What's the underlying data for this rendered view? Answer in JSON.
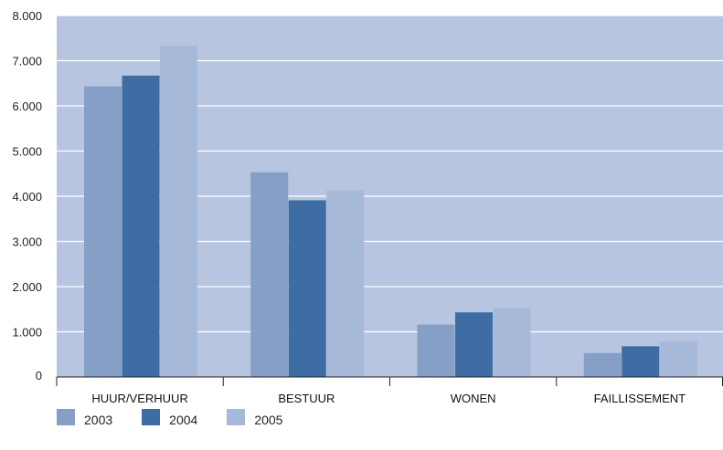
{
  "chart_data": {
    "type": "bar",
    "categories": [
      "HUUR/VERHUUR",
      "BESTUUR",
      "WONEN",
      "FAILLISSEMENT"
    ],
    "series": [
      {
        "name": "2003",
        "color": "#859fc6",
        "values": [
          6430,
          4530,
          1160,
          530
        ]
      },
      {
        "name": "2004",
        "color": "#3d6da3",
        "values": [
          6670,
          3910,
          1430,
          680
        ]
      },
      {
        "name": "2005",
        "color": "#a7b9d9",
        "values": [
          7330,
          4130,
          1530,
          790
        ]
      }
    ],
    "y_ticks": [
      "0",
      "1.000",
      "2.000",
      "3.000",
      "4.000",
      "5.000",
      "6.000",
      "7.000",
      "8.000"
    ],
    "ylim": [
      0,
      8000
    ],
    "grid": true,
    "plot_background": "#b8c5e0",
    "legend_position": "bottom-left",
    "title": "",
    "xlabel": "",
    "ylabel": ""
  }
}
